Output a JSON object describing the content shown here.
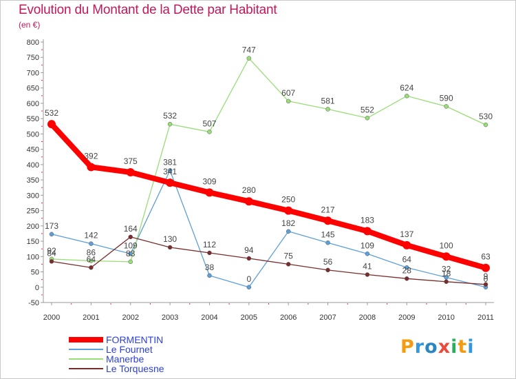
{
  "title": "Evolution du Montant de la Dette par Habitant",
  "unit_label": "(en €)",
  "logo": {
    "text": "Proxiti",
    "letters": [
      {
        "ch": "P",
        "color": "#f39c12"
      },
      {
        "ch": "r",
        "color": "#3498db"
      },
      {
        "ch": "o",
        "color": "#2e86c1"
      },
      {
        "ch": "x",
        "color": "#e74c3c"
      },
      {
        "ch": "i",
        "color": "#27ae60"
      },
      {
        "ch": "t",
        "color": "#f39c12"
      },
      {
        "ch": "i",
        "color": "#3498db"
      }
    ]
  },
  "chart_data": {
    "type": "line",
    "x": [
      "2000",
      "2001",
      "2002",
      "2003",
      "2004",
      "2005",
      "2006",
      "2007",
      "2008",
      "2009",
      "2010",
      "2011"
    ],
    "ylim": [
      -50,
      800
    ],
    "yticks": [
      -50,
      0,
      50,
      100,
      150,
      200,
      250,
      300,
      350,
      400,
      450,
      500,
      550,
      600,
      650,
      700,
      750,
      800
    ],
    "grid": false,
    "legend_position": "bottom-left",
    "series": [
      {
        "name": "FORMENTIN",
        "color": "#ff0000",
        "width": 8,
        "marker_r": 6,
        "values": [
          532,
          392,
          375,
          341,
          309,
          280,
          250,
          217,
          183,
          137,
          100,
          63
        ]
      },
      {
        "name": "Le Fournet",
        "color": "#5d9fd8",
        "width": 1.3,
        "marker_r": 3,
        "values": [
          173,
          142,
          109,
          381,
          38,
          0,
          182,
          145,
          109,
          64,
          32,
          0
        ]
      },
      {
        "name": "Manerbe",
        "color": "#99dd77",
        "width": 1.3,
        "marker_r": 3,
        "values": [
          92,
          86,
          83,
          532,
          507,
          747,
          607,
          581,
          552,
          624,
          590,
          530
        ]
      },
      {
        "name": "Le Torquesne",
        "color": "#7a2c2c",
        "width": 1.3,
        "marker_r": 3,
        "values": [
          84,
          64,
          164,
          130,
          112,
          94,
          75,
          56,
          41,
          28,
          18,
          9
        ]
      }
    ]
  }
}
